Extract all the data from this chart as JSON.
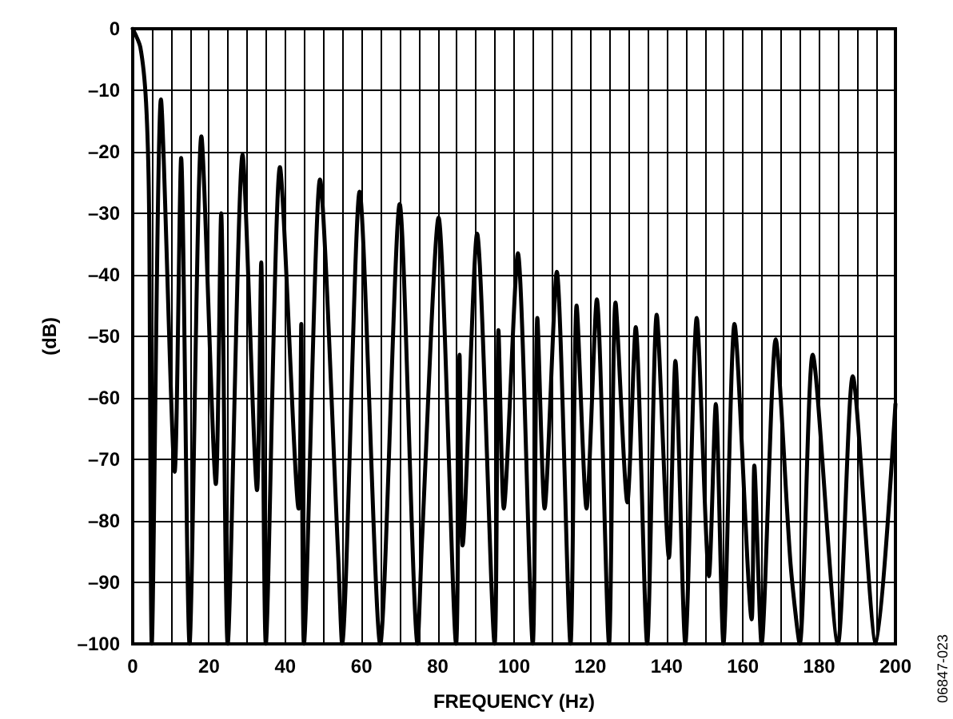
{
  "chart_data": {
    "type": "line",
    "xlabel": "FREQUENCY (Hz)",
    "ylabel": "(dB)",
    "annotations": [
      "06847-023"
    ],
    "xlim": [
      0,
      200
    ],
    "ylim": [
      -100,
      0
    ],
    "grid": true,
    "marker": "none",
    "line_style": "solid",
    "xticks": [
      0,
      {
        "value": 5,
        "label": null
      },
      {
        "value": 10,
        "label": null
      },
      {
        "value": 15,
        "label": null
      },
      20,
      {
        "value": 25,
        "label": null
      },
      {
        "value": 30,
        "label": null
      },
      {
        "value": 35,
        "label": null
      },
      40,
      {
        "value": 45,
        "label": null
      },
      {
        "value": 50,
        "label": null
      },
      {
        "value": 55,
        "label": null
      },
      60,
      {
        "value": 65,
        "label": null
      },
      {
        "value": 70,
        "label": null
      },
      {
        "value": 75,
        "label": null
      },
      80,
      {
        "value": 85,
        "label": null
      },
      {
        "value": 90,
        "label": null
      },
      {
        "value": 95,
        "label": null
      },
      100,
      {
        "value": 105,
        "label": null
      },
      {
        "value": 110,
        "label": null
      },
      {
        "value": 115,
        "label": null
      },
      120,
      {
        "value": 125,
        "label": null
      },
      {
        "value": 130,
        "label": null
      },
      {
        "value": 135,
        "label": null
      },
      140,
      {
        "value": 145,
        "label": null
      },
      {
        "value": 150,
        "label": null
      },
      {
        "value": 155,
        "label": null
      },
      160,
      {
        "value": 165,
        "label": null
      },
      {
        "value": 170,
        "label": null
      },
      {
        "value": 175,
        "label": null
      },
      180,
      {
        "value": 185,
        "label": null
      },
      {
        "value": 190,
        "label": null
      },
      {
        "value": 195,
        "label": null
      },
      200
    ],
    "yticks": [
      {
        "value": -100,
        "label": "–100"
      },
      {
        "value": -90,
        "label": "–90"
      },
      {
        "value": -80,
        "label": "–80"
      },
      {
        "value": -70,
        "label": "–70"
      },
      {
        "value": -60,
        "label": "–60"
      },
      {
        "value": -50,
        "label": "–50"
      },
      {
        "value": -40,
        "label": "–40"
      },
      {
        "value": -30,
        "label": "–30"
      },
      {
        "value": -20,
        "label": "–20"
      },
      {
        "value": -10,
        "label": "–10"
      },
      0
    ],
    "series": [
      {
        "color": "#000000",
        "x": [
          0,
          2,
          3.5,
          4.3,
          5,
          7.4,
          11,
          12.7,
          14.9,
          18,
          21.8,
          23.2,
          24.9,
          28.8,
          32.6,
          33.7,
          34.9,
          38.6,
          43.5,
          44.2,
          44.9,
          49.1,
          53.9,
          54.9,
          59.5,
          64.9,
          70,
          74.7,
          75.8,
          80.2,
          84.8,
          85.7,
          86.5,
          90.3,
          94.9,
          95.9,
          97.3,
          101,
          104.9,
          106.1,
          108,
          111.2,
          114.8,
          116.4,
          119,
          121.7,
          124.9,
          126.6,
          129.7,
          131.9,
          134.9,
          137.4,
          140.6,
          142.3,
          144.9,
          147.9,
          151.1,
          152.9,
          154.9,
          157.8,
          162.3,
          163,
          164.9,
          168.6,
          172.5,
          174.9,
          178.3,
          184.9,
          188.8,
          194.9,
          200
        ],
        "values": [
          0,
          -3,
          -12,
          -30,
          -100,
          -11.5,
          -72,
          -21,
          -100,
          -17.5,
          -74,
          -30,
          -100,
          -20.5,
          -75,
          -38,
          -100,
          -22.5,
          -78,
          -48,
          -100,
          -24.5,
          -86,
          -100,
          -26.5,
          -100,
          -28.5,
          -100,
          -84,
          -30.7,
          -100,
          -53,
          -84,
          -33.3,
          -100,
          -49,
          -78,
          -36.5,
          -100,
          -47,
          -78,
          -39.5,
          -100,
          -45,
          -78,
          -44,
          -100,
          -44.5,
          -77,
          -48.5,
          -100,
          -46.5,
          -86,
          -54,
          -100,
          -47,
          -89,
          -61,
          -100,
          -48,
          -96,
          -71,
          -100,
          -50.5,
          -87,
          -100,
          -53,
          -100,
          -56.5,
          -100,
          -61
        ]
      }
    ]
  }
}
